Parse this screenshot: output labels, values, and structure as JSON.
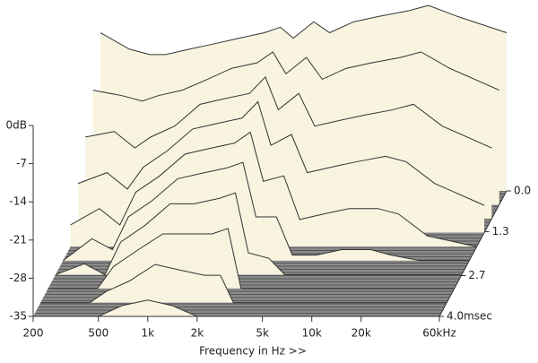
{
  "chart_data": {
    "type": "waterfall",
    "x_label": "Frequency in Hz >>",
    "x": [
      200,
      300,
      400,
      500,
      700,
      1000,
      1400,
      2000,
      2500,
      3000,
      4000,
      5000,
      7000,
      10000,
      15000,
      20000,
      30000,
      60000
    ],
    "series": [
      {
        "time": 0,
        "values": [
          -6,
          -9,
          -10,
          -10,
          -9,
          -8,
          -7,
          -6,
          -5,
          -7,
          -4,
          -6,
          -4,
          -3,
          -2,
          -1,
          -3,
          -6
        ]
      },
      {
        "time": 0.44,
        "values": [
          -14,
          -15,
          -16,
          -15,
          -14,
          -12,
          -10,
          -9,
          -7,
          -11,
          -8,
          -12,
          -10,
          -9,
          -8,
          -7,
          -10,
          -14
        ]
      },
      {
        "time": 0.89,
        "values": [
          -20,
          -19,
          -22,
          -20,
          -18,
          -14,
          -13,
          -12,
          -9,
          -15,
          -12,
          -18,
          -17,
          -16,
          -15,
          -14,
          -18,
          -22
        ]
      },
      {
        "time": 1.33,
        "values": [
          -26,
          -24,
          -27,
          -23,
          -20,
          -16,
          -15,
          -14,
          -11,
          -19,
          -17,
          -24,
          -23,
          -22,
          -21,
          -22,
          -26,
          -30
        ]
      },
      {
        "time": 1.78,
        "values": [
          -31,
          -28,
          -31,
          -25,
          -22,
          -18,
          -17,
          -16,
          -14,
          -23,
          -22,
          -30,
          -29,
          -28,
          -28,
          -29,
          -33,
          -35
        ]
      },
      {
        "time": 2.22,
        "values": [
          -35,
          -31,
          -33,
          -27,
          -24,
          -20,
          -19,
          -18,
          -17,
          -27,
          -27,
          -34,
          -34,
          -33,
          -33,
          -34,
          -35,
          -35
        ]
      },
      {
        "time": 2.67,
        "values": [
          -35,
          -33,
          -35,
          -29,
          -26,
          -22,
          -22,
          -21,
          -20,
          -31,
          -32,
          -35,
          -35,
          -35,
          -35,
          -35,
          -35,
          -35
        ]
      },
      {
        "time": 3.11,
        "values": [
          -35,
          -35,
          -35,
          -31,
          -28,
          -25,
          -25,
          -25,
          -24,
          -35,
          -35,
          -35,
          -35,
          -35,
          -35,
          -35,
          -35,
          -35
        ]
      },
      {
        "time": 3.56,
        "values": [
          -35,
          -35,
          -35,
          -33,
          -31,
          -28,
          -29,
          -30,
          -30,
          -35,
          -35,
          -35,
          -35,
          -35,
          -35,
          -35,
          -35,
          -35
        ]
      },
      {
        "time": 4.0,
        "values": [
          -35,
          -35,
          -35,
          -35,
          -33,
          -32,
          -33,
          -35,
          -35,
          -35,
          -35,
          -35,
          -35,
          -35,
          -35,
          -35,
          -35,
          -35
        ]
      }
    ],
    "fill": "#f8f4e0",
    "stroke": "#333333",
    "floor_color": "#8a8a8a",
    "xlim": [
      200,
      60000
    ],
    "x_log": true,
    "xticks": [
      200,
      500,
      {
        "value": 1000,
        "label": "1k"
      },
      {
        "value": 2000,
        "label": "2k"
      },
      {
        "value": 5000,
        "label": "5k"
      },
      {
        "value": 10000,
        "label": "10k"
      },
      {
        "value": 20000,
        "label": "20k"
      },
      {
        "value": 60000,
        "label": "60kHz"
      }
    ],
    "ylim": [
      -35,
      0
    ],
    "yticks": [
      {
        "value": 0,
        "label": "0dB"
      },
      -7,
      -14,
      -21,
      -28,
      -35
    ],
    "zlim": [
      0,
      4
    ],
    "zticks": [
      {
        "value": 0,
        "label": "0.0"
      },
      1.3,
      2.7,
      {
        "value": 4,
        "label": "4.0msec"
      }
    ]
  }
}
